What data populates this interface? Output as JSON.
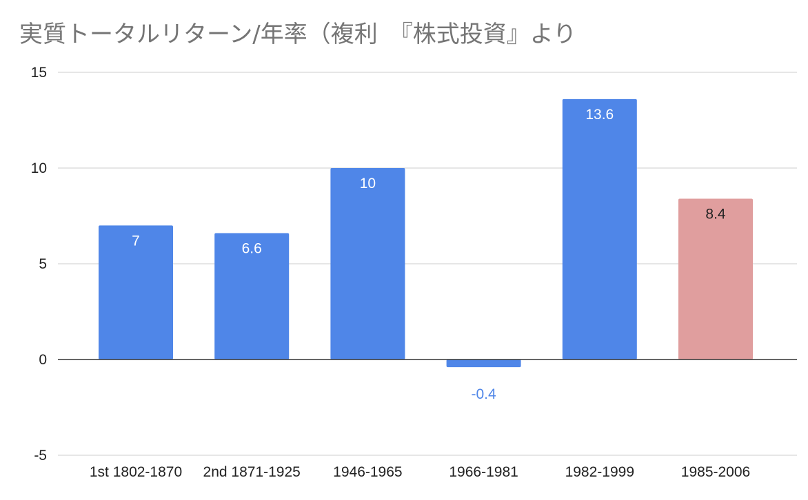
{
  "chart_data": {
    "type": "bar",
    "title": "実質トータルリターン/年率（複利　『株式投資』より",
    "xlabel": "",
    "ylabel": "",
    "categories": [
      "1st 1802-1870",
      "2nd 1871-1925",
      "1946-1965",
      "1966-1981",
      "1982-1999",
      "1985-2006"
    ],
    "values": [
      7,
      6.6,
      10,
      -0.4,
      13.6,
      8.4
    ],
    "data_labels": [
      "7",
      "6.6",
      "10",
      "-0.4",
      "13.6",
      "8.4"
    ],
    "ylim": [
      -5,
      15
    ],
    "yticks": [
      -5,
      0,
      5,
      10,
      15
    ],
    "ytick_labels": [
      "-5",
      "0",
      "5",
      "10",
      "15"
    ],
    "grid": true,
    "legend": "none",
    "bar_colors": [
      "#4f86e8",
      "#4f86e8",
      "#4f86e8",
      "#4f86e8",
      "#4f86e8",
      "#e09e9e"
    ],
    "label_colors": [
      "#ffffff",
      "#ffffff",
      "#ffffff",
      "#4f86e8",
      "#ffffff",
      "#222222"
    ]
  }
}
